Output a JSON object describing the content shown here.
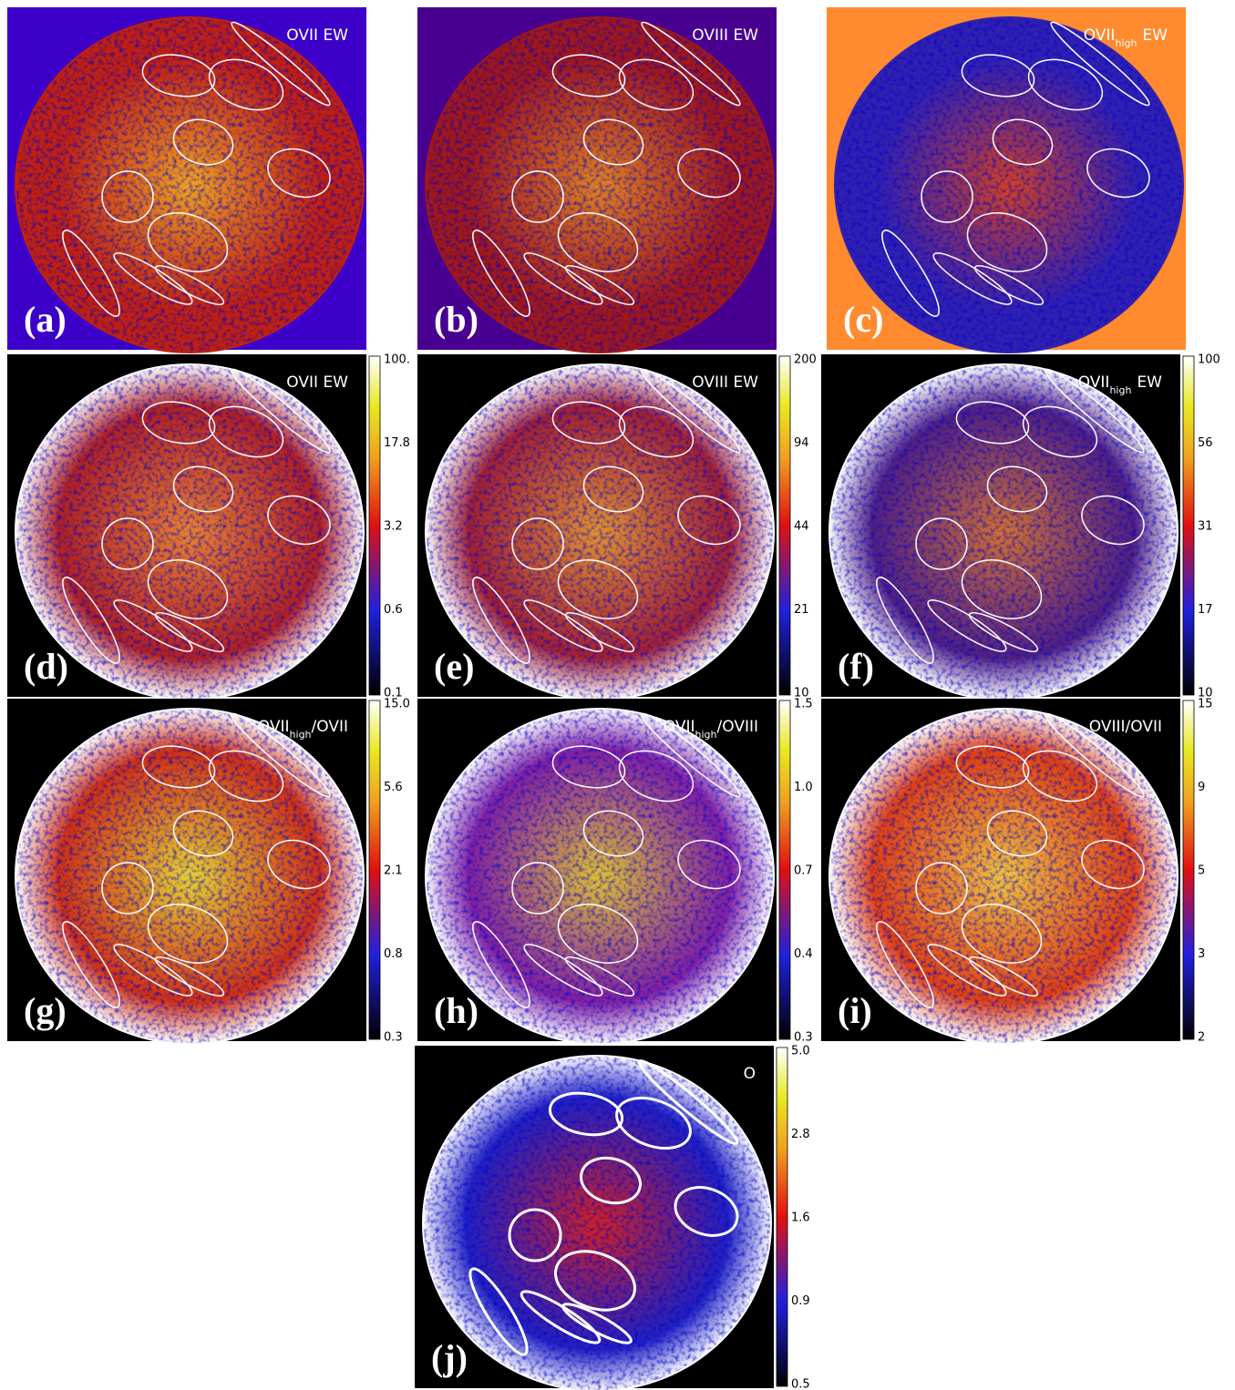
{
  "panels": [
    {
      "label": "(a)",
      "title": "OVII EW"
    },
    {
      "label": "(b)",
      "title": "OVIII EW"
    },
    {
      "label": "(c)",
      "title": "OVII",
      "title_sub": "high",
      "title_rest": "EW"
    },
    {
      "label": "(d)",
      "title": "OVII EW",
      "colorbar": [
        "0.1",
        "0.6",
        "3.2",
        "17.8",
        "100."
      ]
    },
    {
      "label": "(e)",
      "title": "OVIII EW",
      "colorbar": [
        "10",
        "21",
        "44",
        "94",
        "200"
      ]
    },
    {
      "label": "(f)",
      "title": "OVII",
      "title_sub": "high",
      "title_rest": "EW",
      "colorbar": [
        "10",
        "17",
        "31",
        "56",
        "100"
      ]
    },
    {
      "label": "(g)",
      "title": "OVII",
      "title_sub": "high",
      "title_rest": "/OVII",
      "colorbar": [
        "0.3",
        "0.8",
        "2.1",
        "5.6",
        "15.0"
      ]
    },
    {
      "label": "(h)",
      "title": "OVII",
      "title_sub": "high",
      "title_rest": "/OVIII",
      "colorbar": [
        "0.3",
        "0.4",
        "0.7",
        "1.0",
        "1.5"
      ]
    },
    {
      "label": "(i)",
      "title": "OVIII/OVII",
      "colorbar": [
        "2",
        "3",
        "5",
        "9",
        "15"
      ]
    },
    {
      "label": "(j)",
      "title": "O",
      "colorbar": [
        "0.5",
        "0.9",
        "1.6",
        "2.8",
        "5.0"
      ]
    }
  ]
}
